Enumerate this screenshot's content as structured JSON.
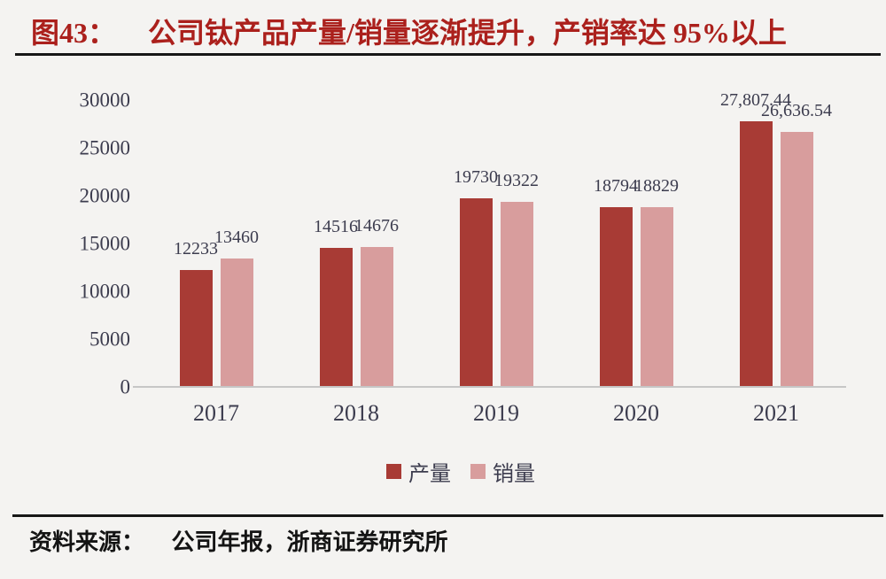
{
  "header": {
    "figure_label": "图43：",
    "title": "公司钛产品产量/销量逐渐提升，产销率达 95%以上"
  },
  "footer": {
    "source_label": "资料来源：",
    "source_text": "公司年报，浙商证券研究所"
  },
  "colors": {
    "title_red": "#ab201c",
    "production_bar": "#a83b35",
    "sales_bar": "#d89d9d",
    "axis_text": "#3c3c4e",
    "baseline": "#c6c6c6",
    "rule": "#171717",
    "background": "#f4f3f1"
  },
  "chart_data": {
    "type": "bar",
    "title": "公司钛产品产量/销量逐渐提升，产销率达 95%以上",
    "categories": [
      "2017",
      "2018",
      "2019",
      "2020",
      "2021"
    ],
    "series": [
      {
        "key": "production",
        "name": "产量",
        "color": "#a83b35",
        "values": [
          12233,
          14516,
          19730,
          18794,
          27807.44
        ],
        "labels": [
          "12233",
          "14516",
          "19730",
          "18794",
          "27,807.44"
        ]
      },
      {
        "key": "sales",
        "name": "销量",
        "color": "#d89d9d",
        "values": [
          13460,
          14676,
          19322,
          18829,
          26636.54
        ],
        "labels": [
          "13460",
          "14676",
          "19322",
          "18829",
          "26,636.54"
        ]
      }
    ],
    "ylim": [
      0,
      30000
    ],
    "yticks": [
      0,
      5000,
      10000,
      15000,
      20000,
      25000,
      30000
    ],
    "grid": false,
    "legend_position": "bottom"
  }
}
